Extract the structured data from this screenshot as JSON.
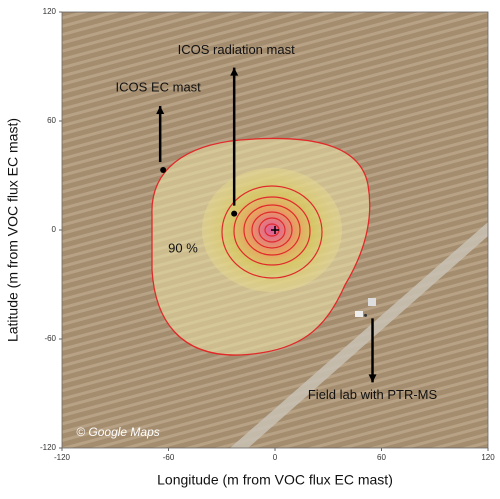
{
  "chart_data": {
    "type": "footprint",
    "xlabel": "Longitude (m from VOC flux EC mast)",
    "ylabel": "Latitude (m from VOC flux EC mast)",
    "xlim": [
      -120,
      120
    ],
    "ylim": [
      -120,
      120
    ],
    "xticks": [
      -120,
      -60,
      0,
      60,
      120
    ],
    "yticks": [
      -120,
      -60,
      0,
      60,
      120
    ],
    "points": [
      {
        "label": "ICOS EC mast",
        "x": -63,
        "y": 33
      },
      {
        "label": "ICOS radiation mast",
        "x": -23,
        "y": 9
      },
      {
        "label": "Field lab with PTR-MS",
        "x": 51,
        "y": -47
      }
    ],
    "contour_label": "90 %",
    "credit": "© Google Maps"
  }
}
